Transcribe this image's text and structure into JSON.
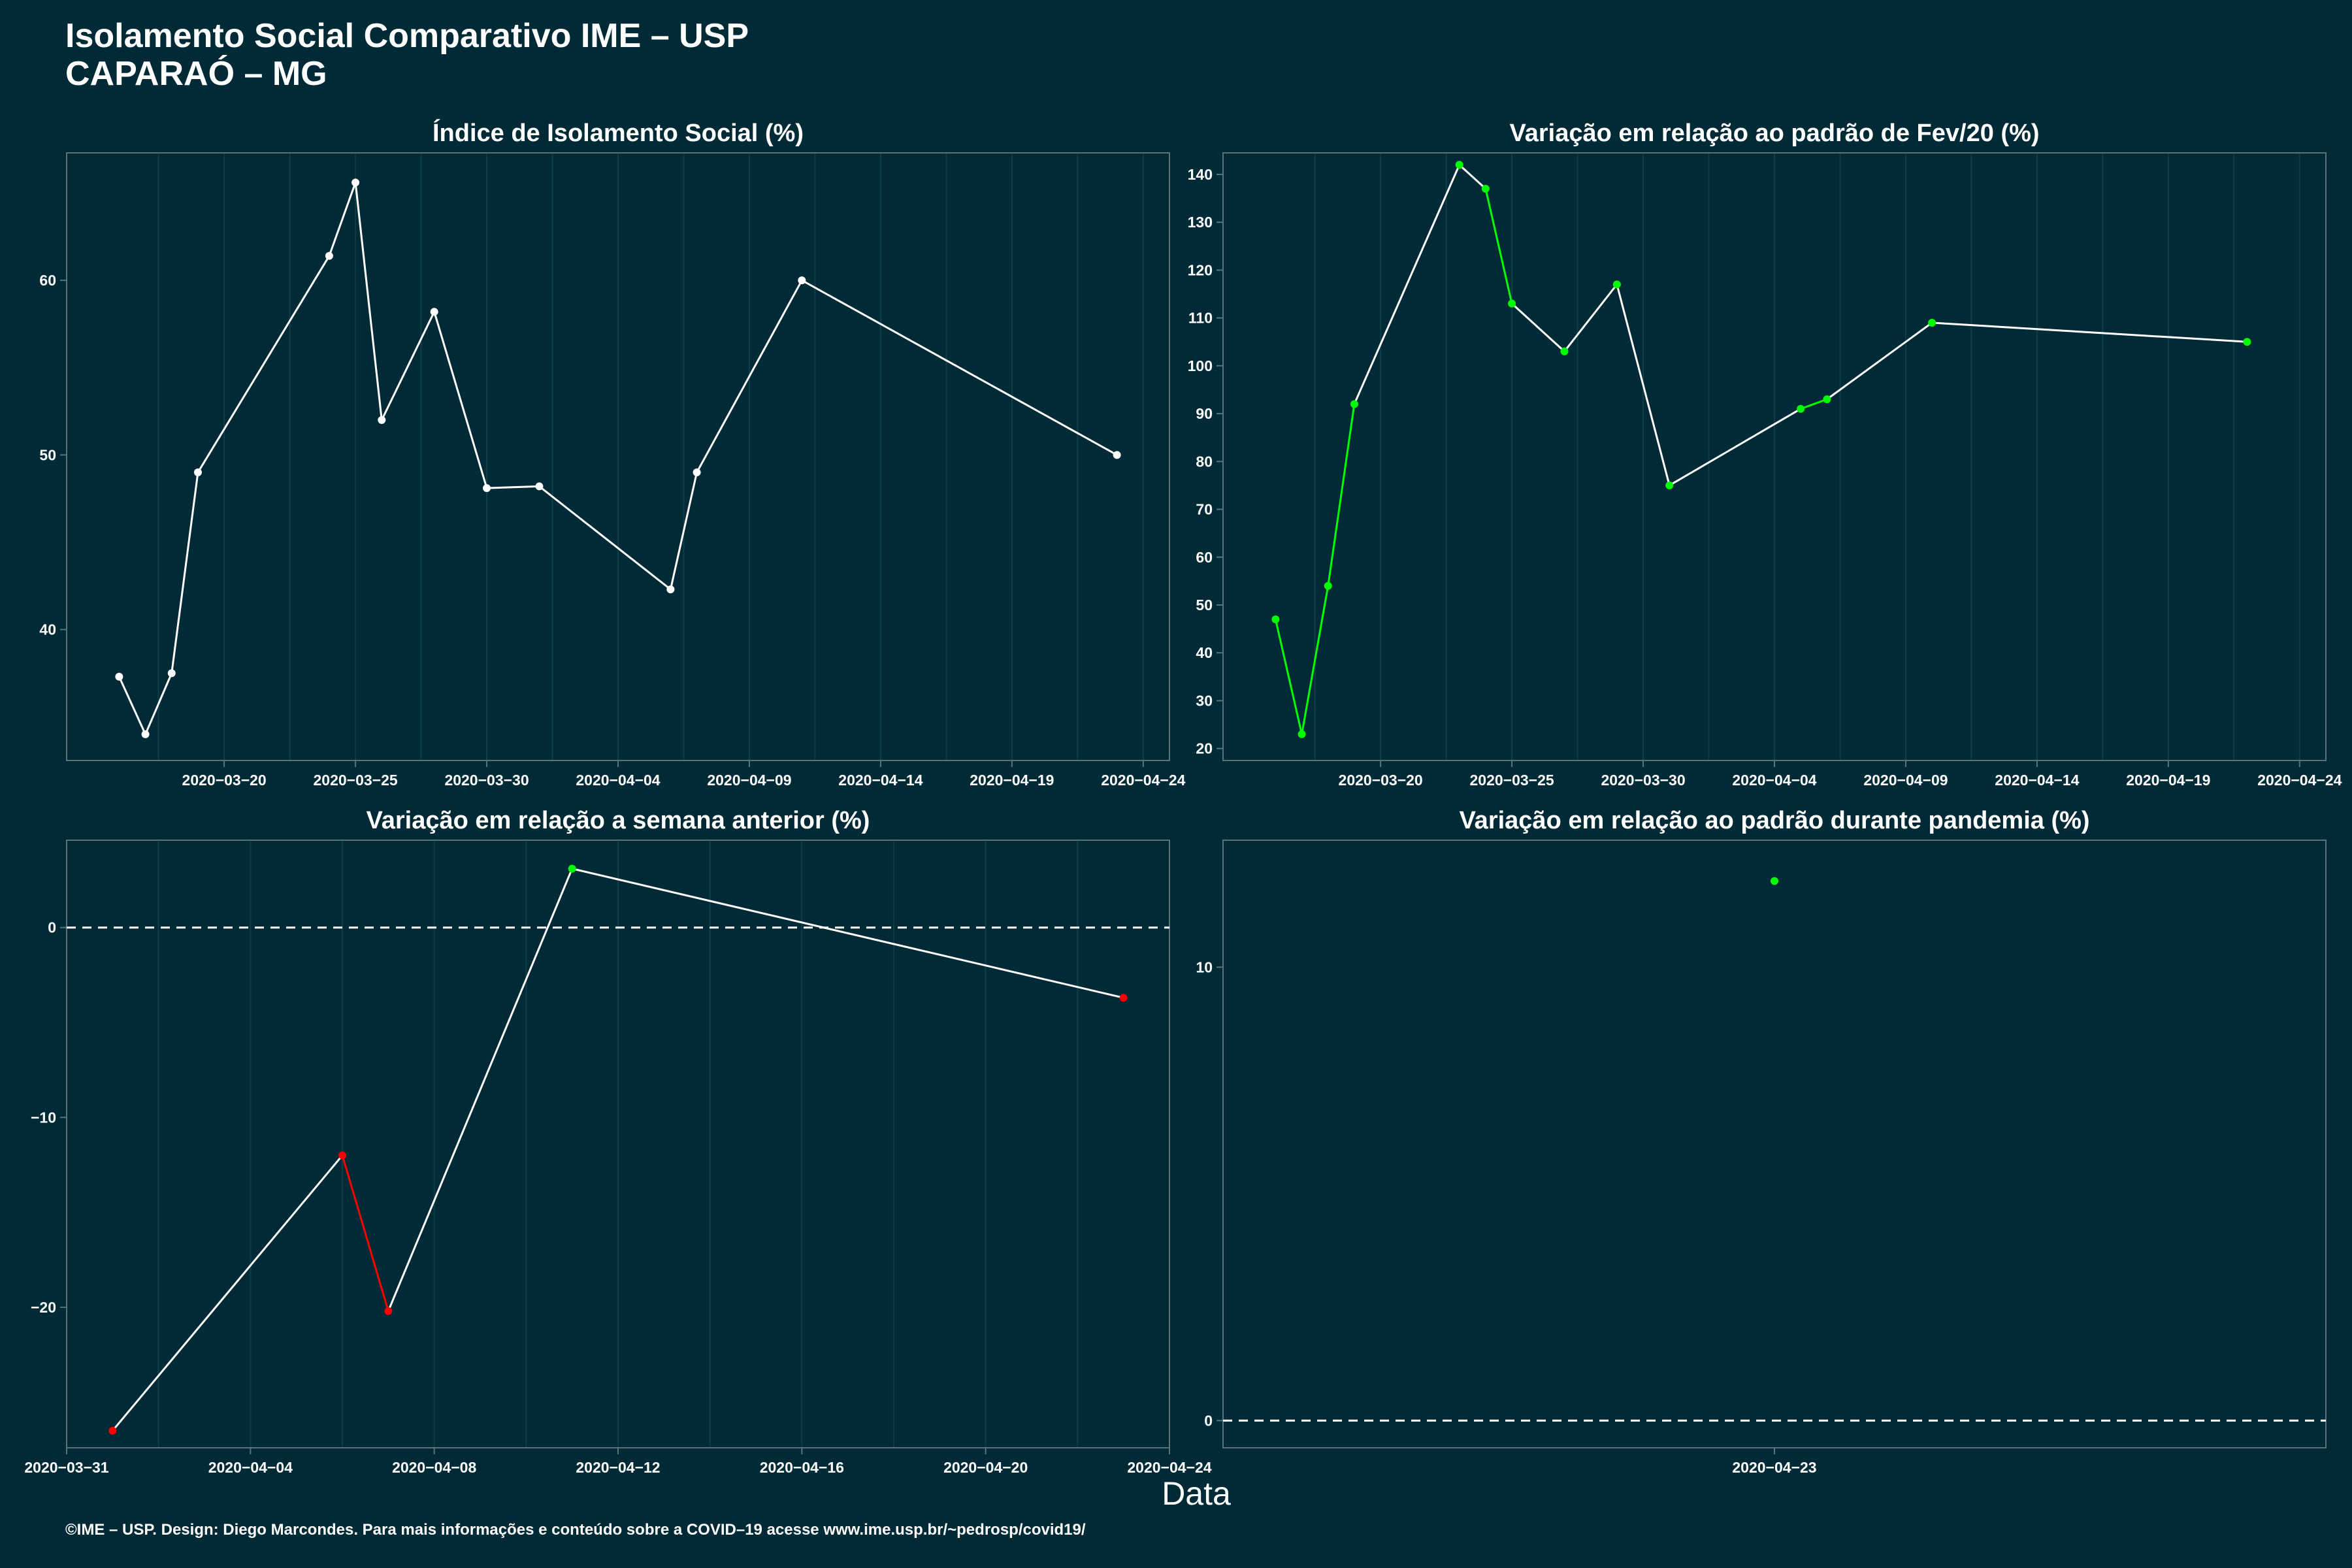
{
  "title": [
    "Isolamento Social Comparativo IME – USP",
    "CAPARAÓ – MG"
  ],
  "xlabel": "Data",
  "footer": "©IME – USP. Design: Diego Marcondes. Para mais informações e conteúdo sobre a COVID–19 acesse www.ime.usp.br/~pedrosp/covid19/",
  "colors": {
    "background": "#002b36",
    "line": "#ffffff",
    "up": "#00ff00",
    "down": "#ff0000",
    "grid": "#0f3d47",
    "border": "#5b7278"
  },
  "chart_data": [
    {
      "type": "line",
      "title": "Índice de Isolamento Social (%)",
      "ylim": [
        32.5,
        67.3
      ],
      "yticks": [
        40,
        50,
        60
      ],
      "xlim": [
        "2020-03-14",
        "2020-04-25"
      ],
      "xticks": [
        "2020-03-20",
        "2020-03-25",
        "2020-03-30",
        "2020-04-04",
        "2020-04-09",
        "2020-04-14",
        "2020-04-19",
        "2020-04-24"
      ],
      "grid": true,
      "series": [
        {
          "x": [
            "2020-03-16",
            "2020-03-17",
            "2020-03-18",
            "2020-03-19",
            "2020-03-24",
            "2020-03-25",
            "2020-03-26",
            "2020-03-28",
            "2020-03-30",
            "2020-04-01",
            "2020-04-06",
            "2020-04-07",
            "2020-04-11",
            "2020-04-23"
          ],
          "y": [
            37.3,
            34.0,
            37.5,
            49.0,
            61.4,
            65.6,
            52.0,
            58.2,
            48.1,
            48.2,
            42.3,
            49.0,
            60.0,
            50.0
          ]
        }
      ]
    },
    {
      "type": "line",
      "title": "Variação em relação ao padrão de Fev/20 (%)",
      "ylim": [
        17.5,
        144.5
      ],
      "yticks": [
        20,
        30,
        40,
        50,
        60,
        70,
        80,
        90,
        100,
        110,
        120,
        130,
        140
      ],
      "xlim": [
        "2020-03-14",
        "2020-04-25"
      ],
      "xticks": [
        "2020-03-20",
        "2020-03-25",
        "2020-03-30",
        "2020-04-04",
        "2020-04-09",
        "2020-04-14",
        "2020-04-19",
        "2020-04-24"
      ],
      "grid": true,
      "series": [
        {
          "x": [
            "2020-03-16",
            "2020-03-17",
            "2020-03-18",
            "2020-03-19",
            "2020-03-23",
            "2020-03-24",
            "2020-03-25",
            "2020-03-27",
            "2020-03-29",
            "2020-03-31",
            "2020-04-05",
            "2020-04-06",
            "2020-04-10",
            "2020-04-22"
          ],
          "y": [
            47,
            23,
            54,
            92,
            142,
            137,
            113,
            103,
            117,
            75,
            91,
            93,
            109,
            105
          ],
          "point_colors": [
            "up",
            "up",
            "up",
            "up",
            "up",
            "up",
            "up",
            "up",
            "up",
            "up",
            "up",
            "up",
            "up",
            "up"
          ],
          "segment_colors": [
            "up",
            "up",
            "up",
            "line",
            "line",
            "up",
            "line",
            "line",
            "line",
            "line",
            "up",
            "line",
            "line"
          ]
        }
      ]
    },
    {
      "type": "line",
      "title": "Variação em relação a semana anterior (%)",
      "ylim": [
        -27.4,
        4.6
      ],
      "yticks": [
        -20,
        -10,
        0
      ],
      "hline": 0,
      "xlim": [
        "2020-03-31",
        "2020-04-24"
      ],
      "xticks": [
        "2020-03-31",
        "2020-04-04",
        "2020-04-08",
        "2020-04-12",
        "2020-04-16",
        "2020-04-20",
        "2020-04-24"
      ],
      "grid": true,
      "series": [
        {
          "x": [
            "2020-04-01",
            "2020-04-06",
            "2020-04-07",
            "2020-04-11",
            "2020-04-23"
          ],
          "y": [
            -26.5,
            -12.0,
            -20.2,
            3.1,
            -3.7
          ],
          "point_colors": [
            "down",
            "down",
            "down",
            "up",
            "down"
          ],
          "segment_colors": [
            "line",
            "down",
            "line",
            "line"
          ]
        }
      ]
    },
    {
      "type": "scatter",
      "title": "Variação em relação ao padrão durante pandemia (%)",
      "ylim": [
        -0.6,
        12.8
      ],
      "yticks": [
        0,
        10
      ],
      "hline": 0,
      "xlim": [
        "2020-04-22",
        "2020-04-24"
      ],
      "xticks": [
        "2020-04-23"
      ],
      "grid": false,
      "series": [
        {
          "x": [
            "2020-04-23"
          ],
          "y": [
            11.9
          ],
          "point_colors": [
            "up"
          ]
        }
      ]
    }
  ]
}
